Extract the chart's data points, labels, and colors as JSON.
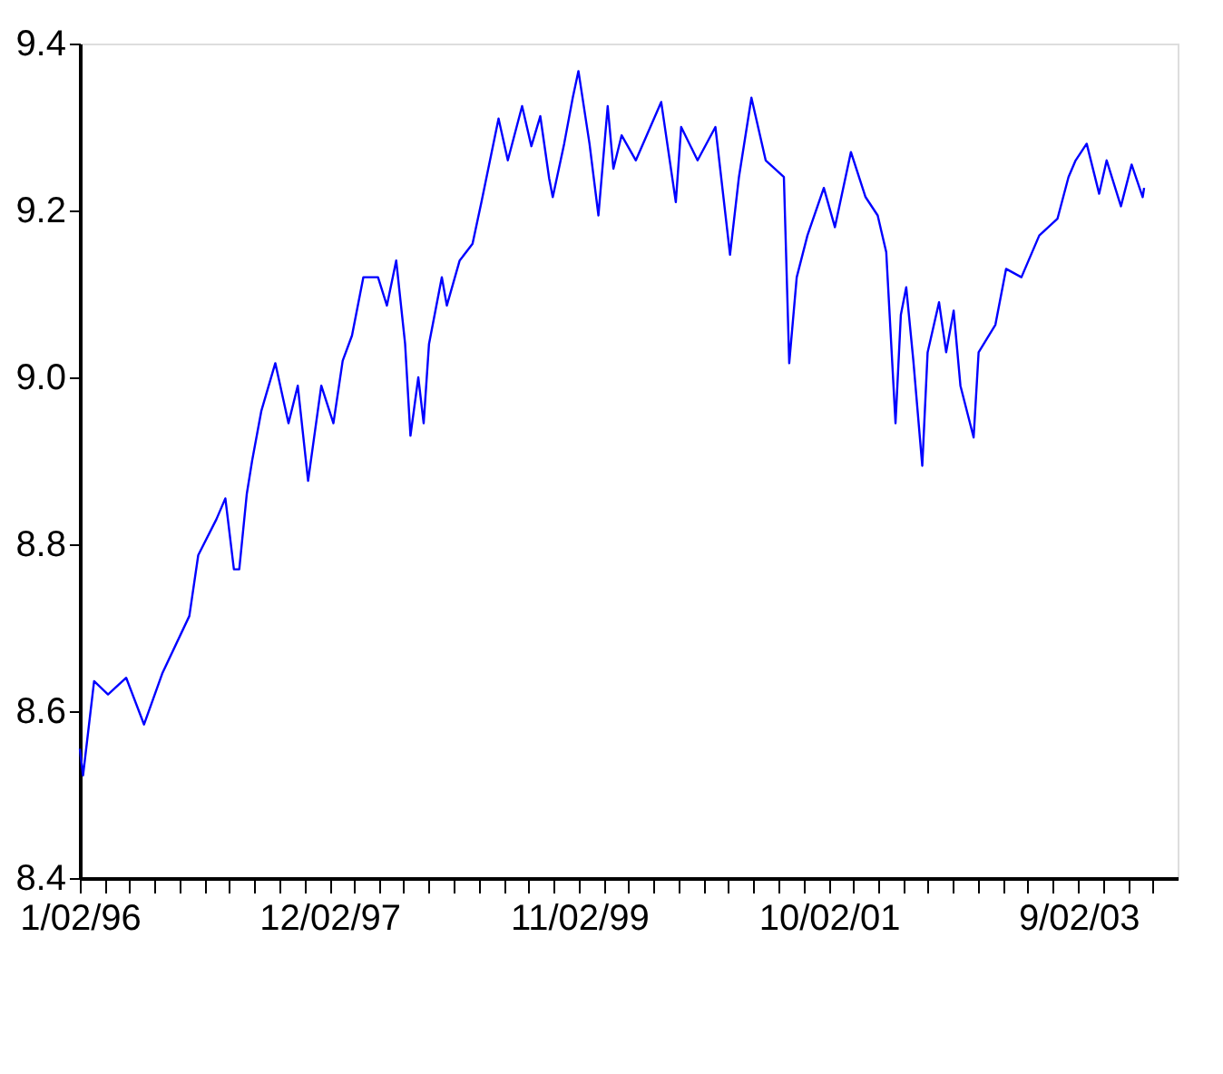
{
  "chart_data": {
    "type": "line",
    "x": [
      "1996-01-02",
      "1996-01-11",
      "1996-02-11",
      "1996-03-21",
      "1996-05-11",
      "1996-06-30",
      "1996-08-20",
      "1996-11-04",
      "1996-11-29",
      "1997-01-19",
      "1997-02-13",
      "1997-03-09",
      "1997-03-24",
      "1997-04-14",
      "1997-04-29",
      "1997-05-25",
      "1997-07-03",
      "1997-08-09",
      "1997-09-04",
      "1997-10-03",
      "1997-11-09",
      "1997-12-13",
      "1998-01-08",
      "1998-02-03",
      "1998-03-07",
      "1998-04-17",
      "1998-05-12",
      "1998-06-07",
      "1998-07-02",
      "1998-07-17",
      "1998-08-08",
      "1998-08-23",
      "1998-09-07",
      "1998-10-13",
      "1998-10-27",
      "1998-12-02",
      "1999-01-07",
      "1999-02-01",
      "1999-02-25",
      "1999-03-21",
      "1999-04-16",
      "1999-05-26",
      "1999-06-21",
      "1999-07-16",
      "1999-08-10",
      "1999-08-20",
      "1999-09-21",
      "1999-10-15",
      "1999-10-31",
      "1999-12-01",
      "1999-12-26",
      "2000-01-21",
      "2000-02-06",
      "2000-02-29",
      "2000-04-09",
      "2000-06-19",
      "2000-07-30",
      "2000-08-14",
      "2000-09-29",
      "2000-11-18",
      "2000-12-29",
      "2001-01-23",
      "2001-02-27",
      "2001-04-08",
      "2001-05-29",
      "2001-06-13",
      "2001-07-04",
      "2001-08-03",
      "2001-09-18",
      "2001-10-19",
      "2001-12-03",
      "2002-01-13",
      "2002-02-16",
      "2002-03-12",
      "2002-04-07",
      "2002-04-22",
      "2002-05-07",
      "2002-05-27",
      "2002-06-21",
      "2002-07-06",
      "2002-08-07",
      "2002-08-27",
      "2002-09-17",
      "2002-10-06",
      "2002-11-12",
      "2002-11-26",
      "2003-01-12",
      "2003-02-11",
      "2003-03-26",
      "2003-05-15",
      "2003-07-05",
      "2003-08-05",
      "2003-08-25",
      "2003-09-25",
      "2003-10-30",
      "2003-11-20",
      "2003-12-30",
      "2004-01-29",
      "2004-02-29",
      "2004-03-04"
    ],
    "series": [
      {
        "color": "#0000ff",
        "values": [
          8.555,
          8.523,
          8.636,
          8.62,
          8.64,
          8.584,
          8.645,
          8.714,
          8.787,
          8.83,
          8.855,
          8.77,
          8.77,
          8.86,
          8.9,
          8.96,
          9.017,
          8.945,
          8.99,
          8.876,
          8.99,
          8.945,
          9.02,
          9.05,
          9.12,
          9.12,
          9.086,
          9.14,
          9.04,
          8.93,
          9.0,
          8.945,
          9.04,
          9.12,
          9.086,
          9.14,
          9.16,
          9.21,
          9.26,
          9.31,
          9.26,
          9.325,
          9.277,
          9.313,
          9.238,
          9.216,
          9.28,
          9.335,
          9.367,
          9.28,
          9.194,
          9.325,
          9.25,
          9.29,
          9.26,
          9.33,
          9.21,
          9.3,
          9.26,
          9.3,
          9.147,
          9.24,
          9.335,
          9.26,
          9.24,
          9.017,
          9.12,
          9.17,
          9.227,
          9.18,
          9.27,
          9.216,
          9.194,
          9.15,
          8.945,
          9.075,
          9.108,
          9.02,
          8.894,
          9.03,
          9.09,
          9.03,
          9.08,
          8.99,
          8.928,
          9.03,
          9.063,
          9.13,
          9.12,
          9.17,
          9.19,
          9.24,
          9.26,
          9.28,
          9.22,
          9.26,
          9.205,
          9.255,
          9.216,
          9.227
        ]
      }
    ],
    "xlim": [
      "1996-01-02",
      "2004-06-06"
    ],
    "xticks": [
      {
        "value": "1996-01-02",
        "label": "1/02/96"
      },
      {
        "value": "1996-03-11",
        "label": null
      },
      {
        "value": "1996-05-20",
        "label": null
      },
      {
        "value": "1996-07-29",
        "label": null
      },
      {
        "value": "1996-10-07",
        "label": null
      },
      {
        "value": "1996-12-16",
        "label": null
      },
      {
        "value": "1997-02-24",
        "label": null
      },
      {
        "value": "1997-05-04",
        "label": null
      },
      {
        "value": "1997-07-13",
        "label": null
      },
      {
        "value": "1997-09-22",
        "label": null
      },
      {
        "value": "1997-12-02",
        "label": "12/02/97"
      },
      {
        "value": "1998-02-10",
        "label": null
      },
      {
        "value": "1998-04-19",
        "label": null
      },
      {
        "value": "1998-06-28",
        "label": null
      },
      {
        "value": "1998-09-07",
        "label": null
      },
      {
        "value": "1998-11-16",
        "label": null
      },
      {
        "value": "1999-01-25",
        "label": null
      },
      {
        "value": "1999-04-04",
        "label": null
      },
      {
        "value": "1999-06-13",
        "label": null
      },
      {
        "value": "1999-08-22",
        "label": null
      },
      {
        "value": "1999-11-02",
        "label": "11/02/99"
      },
      {
        "value": "2000-01-10",
        "label": null
      },
      {
        "value": "2000-03-19",
        "label": null
      },
      {
        "value": "2000-05-28",
        "label": null
      },
      {
        "value": "2000-08-06",
        "label": null
      },
      {
        "value": "2000-10-15",
        "label": null
      },
      {
        "value": "2000-12-24",
        "label": null
      },
      {
        "value": "2001-03-04",
        "label": null
      },
      {
        "value": "2001-05-13",
        "label": null
      },
      {
        "value": "2001-07-22",
        "label": null
      },
      {
        "value": "2001-10-02",
        "label": "10/02/01"
      },
      {
        "value": "2001-12-10",
        "label": null
      },
      {
        "value": "2002-02-18",
        "label": null
      },
      {
        "value": "2002-04-28",
        "label": null
      },
      {
        "value": "2002-07-07",
        "label": null
      },
      {
        "value": "2002-09-15",
        "label": null
      },
      {
        "value": "2002-11-24",
        "label": null
      },
      {
        "value": "2003-02-03",
        "label": null
      },
      {
        "value": "2003-04-13",
        "label": null
      },
      {
        "value": "2003-06-22",
        "label": null
      },
      {
        "value": "2003-09-02",
        "label": "9/02/03"
      },
      {
        "value": "2003-11-10",
        "label": null
      },
      {
        "value": "2004-01-19",
        "label": null
      },
      {
        "value": "2004-03-28",
        "label": null
      }
    ],
    "ylim": [
      8.4,
      9.4
    ],
    "yticks": [
      {
        "value": 8.4,
        "label": "8.4"
      },
      {
        "value": 8.6,
        "label": "8.6"
      },
      {
        "value": 8.8,
        "label": "8.8"
      },
      {
        "value": 9.0,
        "label": "9.0"
      },
      {
        "value": 9.2,
        "label": "9.2"
      },
      {
        "value": 9.4,
        "label": "9.4"
      }
    ],
    "grid": false,
    "legend": false,
    "line_style": "solid"
  }
}
